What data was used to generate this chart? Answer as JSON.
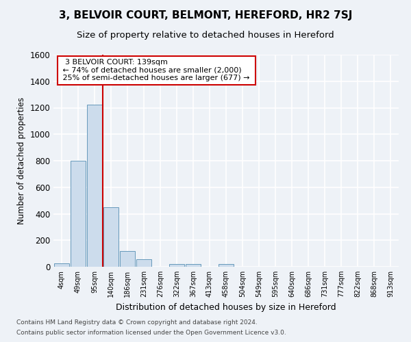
{
  "title1": "3, BELVOIR COURT, BELMONT, HEREFORD, HR2 7SJ",
  "title2": "Size of property relative to detached houses in Hereford",
  "xlabel": "Distribution of detached houses by size in Hereford",
  "ylabel": "Number of detached properties",
  "categories": [
    "4sqm",
    "49sqm",
    "95sqm",
    "140sqm",
    "186sqm",
    "231sqm",
    "276sqm",
    "322sqm",
    "367sqm",
    "413sqm",
    "458sqm",
    "504sqm",
    "549sqm",
    "595sqm",
    "640sqm",
    "686sqm",
    "731sqm",
    "777sqm",
    "822sqm",
    "868sqm",
    "913sqm"
  ],
  "values": [
    25,
    800,
    1225,
    450,
    120,
    58,
    0,
    20,
    20,
    0,
    20,
    0,
    0,
    0,
    0,
    0,
    0,
    0,
    0,
    0,
    0
  ],
  "bar_color": "#ccdcec",
  "bar_edge_color": "#6699bb",
  "vline_x": 2.5,
  "vline_color": "#cc0000",
  "annotation_text": "  3 BELVOIR COURT: 139sqm  \n ← 74% of detached houses are smaller (2,000)\n 25% of semi-detached houses are larger (677) → ",
  "annotation_box_color": "white",
  "annotation_box_edge": "#cc0000",
  "ylim": [
    0,
    1600
  ],
  "yticks": [
    0,
    200,
    400,
    600,
    800,
    1000,
    1200,
    1400,
    1600
  ],
  "footer1": "Contains HM Land Registry data © Crown copyright and database right 2024.",
  "footer2": "Contains public sector information licensed under the Open Government Licence v3.0.",
  "bg_color": "#eef2f7",
  "grid_color": "white",
  "title1_fontsize": 11,
  "title2_fontsize": 9.5
}
